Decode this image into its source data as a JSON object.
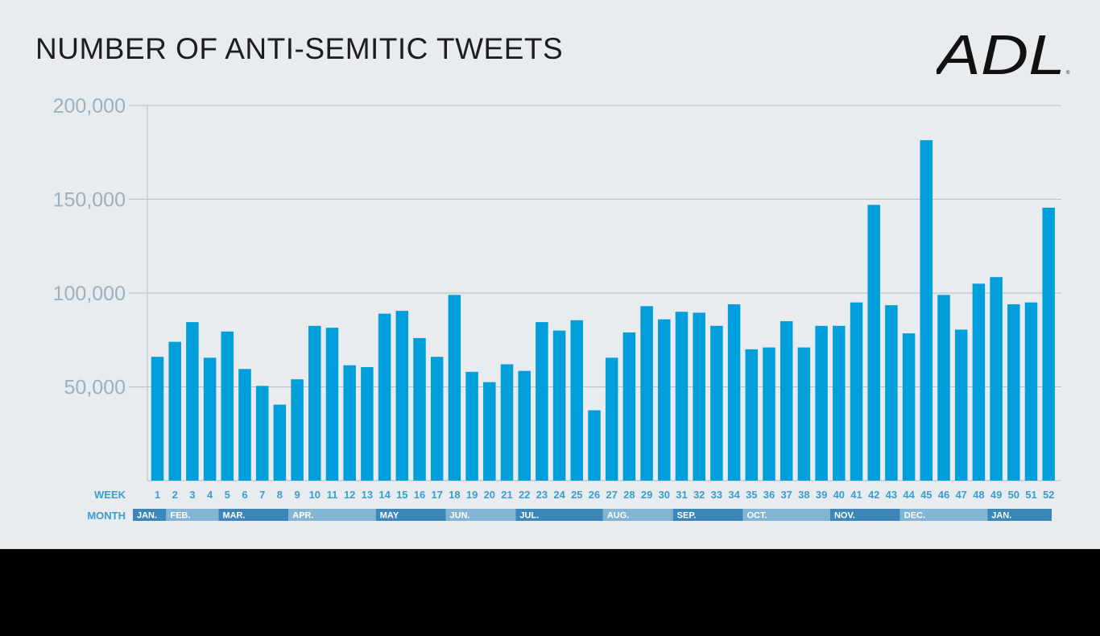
{
  "title": "NUMBER OF ANTI-SEMITIC TWEETS",
  "logo_text": "ADL",
  "colors": {
    "background": "#e8ecef",
    "bar": "#009fdb",
    "gridline": "#b5bec6",
    "axis_label": "#9fb0bd",
    "week_label": "#3a9ccf",
    "month_dark": "#3d86b8",
    "month_light": "#85b4d2",
    "footer": "#000000"
  },
  "chart_data": {
    "type": "bar",
    "title": "NUMBER OF ANTI-SEMITIC TWEETS",
    "xlabel": "WEEK",
    "ylabel": "",
    "ylim": [
      0,
      200000
    ],
    "yticks": [
      50000,
      100000,
      150000,
      200000
    ],
    "ytick_labels": [
      "50,000",
      "100,000",
      "150,000",
      "200,000"
    ],
    "grid": true,
    "x_row_label": "WEEK",
    "month_row_label": "MONTH",
    "categories": [
      "1",
      "2",
      "3",
      "4",
      "5",
      "6",
      "7",
      "8",
      "9",
      "10",
      "11",
      "12",
      "13",
      "14",
      "15",
      "16",
      "17",
      "18",
      "19",
      "20",
      "21",
      "22",
      "23",
      "24",
      "25",
      "26",
      "27",
      "28",
      "29",
      "30",
      "31",
      "32",
      "33",
      "34",
      "35",
      "36",
      "37",
      "38",
      "39",
      "40",
      "41",
      "42",
      "43",
      "44",
      "45",
      "46",
      "47",
      "48",
      "49",
      "50",
      "51",
      "52"
    ],
    "values": [
      66000,
      74000,
      84500,
      65500,
      79500,
      59500,
      50500,
      40500,
      54000,
      82500,
      81500,
      61500,
      60500,
      89000,
      90500,
      76000,
      66000,
      99000,
      58000,
      52500,
      62000,
      58500,
      84500,
      80000,
      85500,
      37500,
      65500,
      79000,
      93000,
      86000,
      90000,
      89500,
      82500,
      94000,
      70000,
      71000,
      85000,
      71000,
      82500,
      82500,
      95000,
      147000,
      93500,
      78500,
      181500,
      99000,
      80500,
      105000,
      108500,
      94000,
      95000,
      145500
    ],
    "months": [
      {
        "label": "JAN.",
        "start_week": 1,
        "end_week": 1,
        "shade": "dark"
      },
      {
        "label": "FEB.",
        "start_week": 2,
        "end_week": 5,
        "shade": "light"
      },
      {
        "label": "MAR.",
        "start_week": 5,
        "end_week": 9,
        "shade": "dark"
      },
      {
        "label": "APR.",
        "start_week": 9,
        "end_week": 14,
        "shade": "light"
      },
      {
        "label": "MAY",
        "start_week": 14,
        "end_week": 18,
        "shade": "dark"
      },
      {
        "label": "JUN.",
        "start_week": 18,
        "end_week": 22,
        "shade": "light"
      },
      {
        "label": "JUL.",
        "start_week": 22,
        "end_week": 27,
        "shade": "dark"
      },
      {
        "label": "AUG.",
        "start_week": 27,
        "end_week": 31,
        "shade": "light"
      },
      {
        "label": "SEP.",
        "start_week": 31,
        "end_week": 35,
        "shade": "dark"
      },
      {
        "label": "OCT.",
        "start_week": 35,
        "end_week": 40,
        "shade": "light"
      },
      {
        "label": "NOV.",
        "start_week": 40,
        "end_week": 44,
        "shade": "dark"
      },
      {
        "label": "DEC.",
        "start_week": 44,
        "end_week": 49,
        "shade": "light"
      },
      {
        "label": "JAN.",
        "start_week": 49,
        "end_week": 52,
        "shade": "dark"
      }
    ]
  }
}
